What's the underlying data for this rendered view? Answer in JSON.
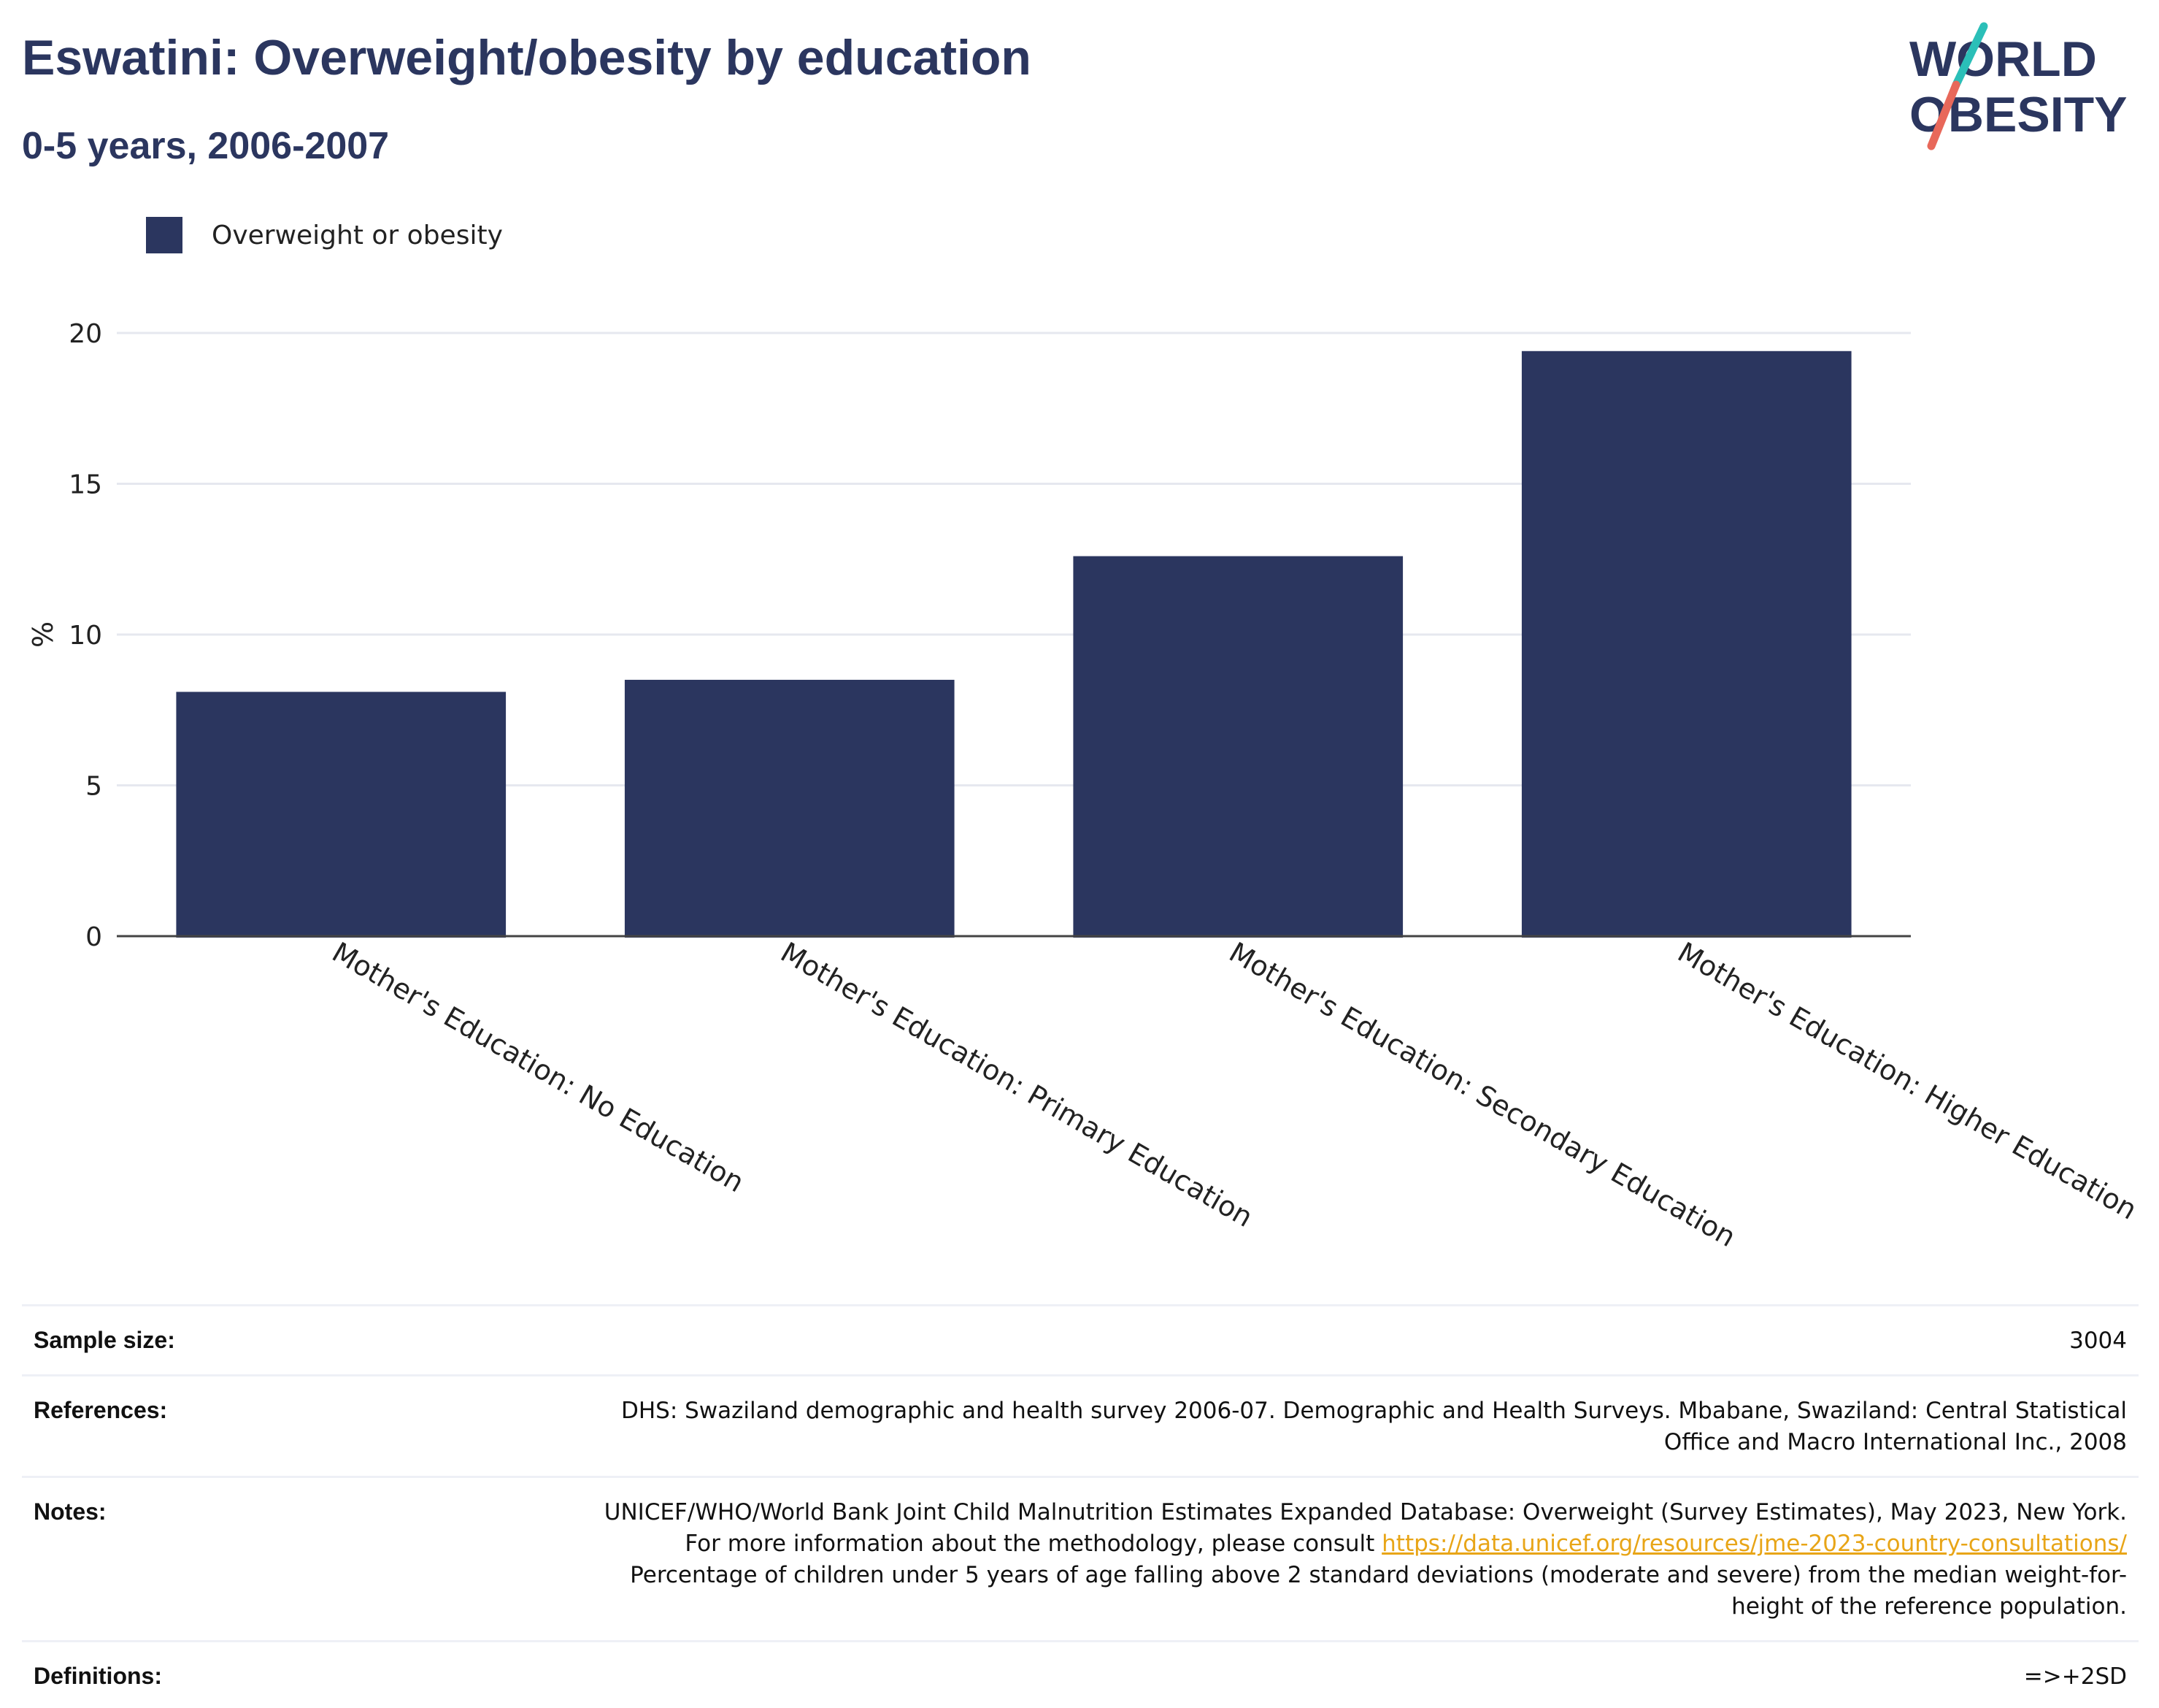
{
  "header": {
    "title": "Eswatini: Overweight/obesity by education",
    "subtitle": "0-5 years, 2006-2007"
  },
  "logo": {
    "line1": "WORLD",
    "line2": "OBESITY",
    "colors": {
      "text": "#2b365f",
      "slash_top": "#2bbfb8",
      "slash_bottom": "#e8685a"
    }
  },
  "legend": {
    "items": [
      {
        "label": "Overweight or obesity",
        "color": "#2b365f"
      }
    ]
  },
  "chart_data": {
    "type": "bar",
    "categories": [
      "Mother's Education: No Education",
      "Mother's Education: Primary Education",
      "Mother's Education: Secondary Education",
      "Mother's Education: Higher Education"
    ],
    "series": [
      {
        "name": "Overweight or obesity",
        "values": [
          8.1,
          8.5,
          12.6,
          19.4
        ],
        "color": "#2b365f"
      }
    ],
    "title": "Eswatini: Overweight/obesity by education",
    "subtitle": "0-5 years, 2006-2007",
    "xlabel": "",
    "ylabel": "%",
    "ylim": [
      0,
      20
    ],
    "yticks": [
      0,
      5,
      10,
      15,
      20
    ],
    "grid": true,
    "legend_position": "top-left"
  },
  "info": {
    "sample_size": {
      "label": "Sample size:",
      "value": "3004"
    },
    "references": {
      "label": "References:",
      "value": "DHS: Swaziland demographic and health survey 2006-07. Demographic and Health Surveys. Mbabane, Swaziland: Central Statistical Office and Macro International Inc., 2008"
    },
    "notes": {
      "label": "Notes:",
      "text_before": "UNICEF/WHO/World Bank Joint Child Malnutrition Estimates Expanded Database: Overweight (Survey Estimates), May 2023, New York. For more information about the methodology, please consult ",
      "link": "https://data.unicef.org/resources/jme-2023-country-consultations/",
      "text_after": " Percentage of children under 5 years of age falling above 2 standard deviations (moderate and severe) from the median weight-for-height of the reference population."
    },
    "definitions": {
      "label": "Definitions:",
      "value": "=>+2SD"
    }
  }
}
